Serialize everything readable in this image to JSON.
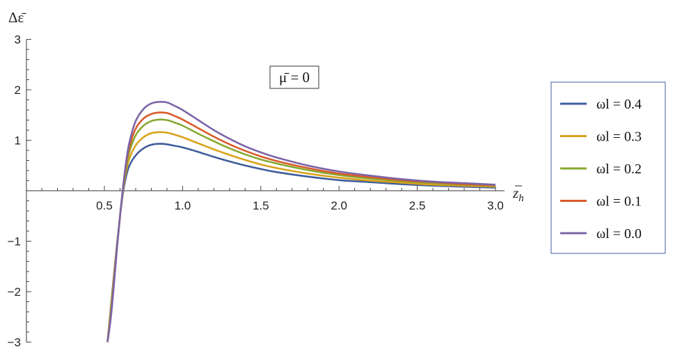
{
  "chart_data": {
    "type": "line",
    "xlabel": "z̄h",
    "xlabel_main": "z",
    "xlabel_sub": "h",
    "ylabel": "Δε̄",
    "xlim": [
      0.5,
      3.0
    ],
    "ylim": [
      -3,
      3
    ],
    "x_ticks": [
      0.5,
      1.0,
      1.5,
      2.0,
      2.5,
      3.0
    ],
    "x_tick_labels": [
      "0.5",
      "1.0",
      "1.5",
      "2.0",
      "2.5",
      "3.0"
    ],
    "y_ticks": [
      -3,
      -2,
      -1,
      1,
      2,
      3
    ],
    "y_tick_labels": [
      "−3",
      "−2",
      "−1",
      "1",
      "2",
      "3"
    ],
    "annotation": "μ̄ = 0",
    "legend_position": "right",
    "x": [
      0.52,
      0.54,
      0.56,
      0.58,
      0.6,
      0.62,
      0.64,
      0.66,
      0.7,
      0.75,
      0.8,
      0.85,
      0.9,
      0.95,
      1.0,
      1.1,
      1.2,
      1.3,
      1.4,
      1.5,
      1.6,
      1.8,
      2.0,
      2.2,
      2.4,
      2.6,
      2.8,
      3.0
    ],
    "series": [
      {
        "name": "ωl = 0.4",
        "color": "#3f5d9c",
        "values": [
          -3.0,
          -2.35,
          -1.7,
          -1.07,
          -0.5,
          -0.02,
          0.3,
          0.5,
          0.7,
          0.84,
          0.91,
          0.93,
          0.92,
          0.89,
          0.86,
          0.77,
          0.67,
          0.58,
          0.5,
          0.43,
          0.37,
          0.28,
          0.21,
          0.17,
          0.13,
          0.1,
          0.08,
          0.06
        ]
      },
      {
        "name": "ωl = 0.3",
        "color": "#d9a21c",
        "values": [
          -3.0,
          -2.4,
          -1.75,
          -1.1,
          -0.5,
          0.02,
          0.4,
          0.64,
          0.9,
          1.06,
          1.14,
          1.16,
          1.15,
          1.11,
          1.06,
          0.94,
          0.82,
          0.71,
          0.61,
          0.52,
          0.45,
          0.34,
          0.26,
          0.2,
          0.16,
          0.12,
          0.1,
          0.08
        ]
      },
      {
        "name": "ωl = 0.2",
        "color": "#87a832",
        "values": [
          -3.0,
          -2.45,
          -1.8,
          -1.12,
          -0.5,
          0.05,
          0.48,
          0.77,
          1.1,
          1.29,
          1.38,
          1.41,
          1.4,
          1.35,
          1.29,
          1.13,
          0.98,
          0.84,
          0.72,
          0.62,
          0.54,
          0.41,
          0.31,
          0.24,
          0.19,
          0.15,
          0.12,
          0.1
        ]
      },
      {
        "name": "ωl = 0.1",
        "color": "#d95b2a",
        "values": [
          -3.0,
          -2.5,
          -1.85,
          -1.14,
          -0.5,
          0.08,
          0.55,
          0.87,
          1.23,
          1.43,
          1.52,
          1.55,
          1.54,
          1.48,
          1.41,
          1.24,
          1.07,
          0.92,
          0.79,
          0.68,
          0.59,
          0.45,
          0.34,
          0.27,
          0.21,
          0.17,
          0.13,
          0.11
        ]
      },
      {
        "name": "ωl = 0.0",
        "color": "#7b65a8",
        "values": [
          -3.0,
          -2.55,
          -1.9,
          -1.16,
          -0.5,
          0.1,
          0.6,
          0.96,
          1.38,
          1.62,
          1.73,
          1.76,
          1.75,
          1.68,
          1.6,
          1.4,
          1.2,
          1.03,
          0.88,
          0.76,
          0.66,
          0.5,
          0.38,
          0.3,
          0.23,
          0.18,
          0.15,
          0.12
        ]
      }
    ]
  }
}
